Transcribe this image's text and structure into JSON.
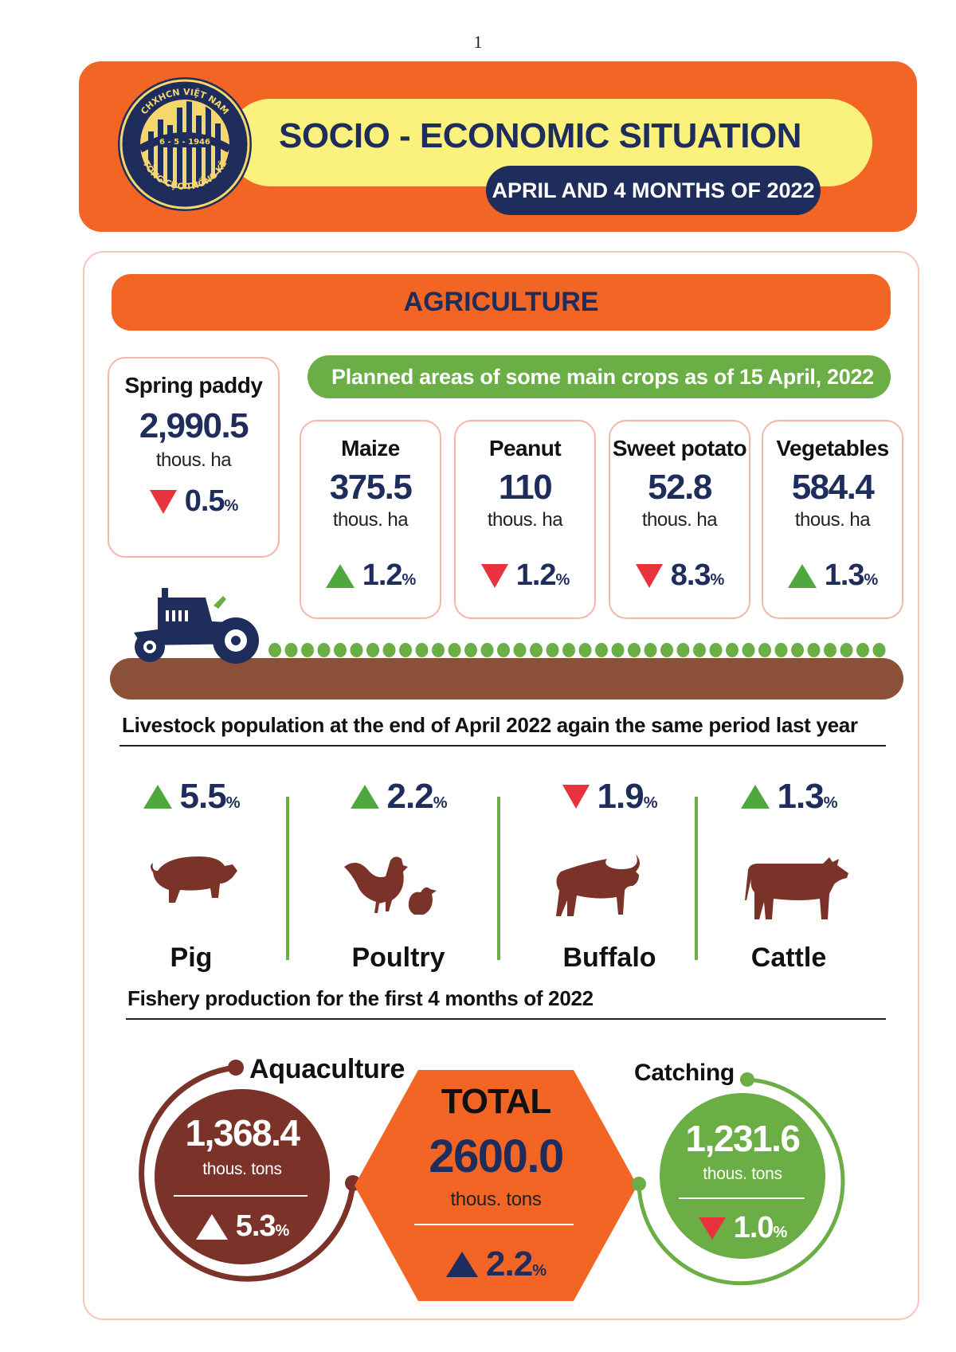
{
  "page": {
    "number": "1"
  },
  "header": {
    "title": "SOCIO - ECONOMIC SITUATION",
    "subtitle": "APRIL AND 4 MONTHS OF 2022",
    "logo": {
      "ring_top": "CHXHCN VIỆT NAM",
      "date": "6 - 5 - 1946",
      "ring_bottom": "TỔNG CỤC THỐNG KÊ"
    }
  },
  "section": {
    "title": "AGRICULTURE"
  },
  "spring_paddy": {
    "name": "Spring paddy",
    "value": "2,990.5",
    "unit": "thous. ha",
    "change": "0.5",
    "direction": "down"
  },
  "planned_crops": {
    "title": "Planned areas of some main crops as of 15 April, 2022",
    "items": [
      {
        "name": "Maize",
        "value": "375.5",
        "unit": "thous. ha",
        "change": "1.2",
        "direction": "up"
      },
      {
        "name": "Peanut",
        "value": "110",
        "unit": "thous. ha",
        "change": "1.2",
        "direction": "down"
      },
      {
        "name": "Sweet potato",
        "value": "52.8",
        "unit": "thous. ha",
        "change": "8.3",
        "direction": "down"
      },
      {
        "name": "Vegetables",
        "value": "584.4",
        "unit": "thous. ha",
        "change": "1.3",
        "direction": "up"
      }
    ]
  },
  "livestock": {
    "title": "Livestock population at the end of April 2022 again the same period last year",
    "items": [
      {
        "name": "Pig",
        "change": "5.5",
        "direction": "up",
        "icon": "pig-icon"
      },
      {
        "name": "Poultry",
        "change": "2.2",
        "direction": "up",
        "icon": "poultry-icon"
      },
      {
        "name": "Buffalo",
        "change": "1.9",
        "direction": "down",
        "icon": "buffalo-icon"
      },
      {
        "name": "Cattle",
        "change": "1.3",
        "direction": "up",
        "icon": "cattle-icon"
      }
    ]
  },
  "fishery": {
    "title": "Fishery production for the first 4 months of 2022",
    "aquaculture": {
      "label": "Aquaculture",
      "value": "1,368.4",
      "unit": "thous. tons",
      "change": "5.3",
      "direction": "up"
    },
    "total": {
      "label": "TOTAL",
      "value": "2600.0",
      "unit": "thous. tons",
      "change": "2.2",
      "direction": "up"
    },
    "catching": {
      "label": "Catching",
      "value": "1,231.6",
      "unit": "thous. tons",
      "change": "1.0",
      "direction": "down"
    }
  },
  "percent_symbol": "%",
  "colors": {
    "orange": "#f26524",
    "navy": "#1f2d5c",
    "yellow": "#fbf27d",
    "green": "#6aae45",
    "brown": "#7b3228",
    "soil": "#8a5138"
  }
}
